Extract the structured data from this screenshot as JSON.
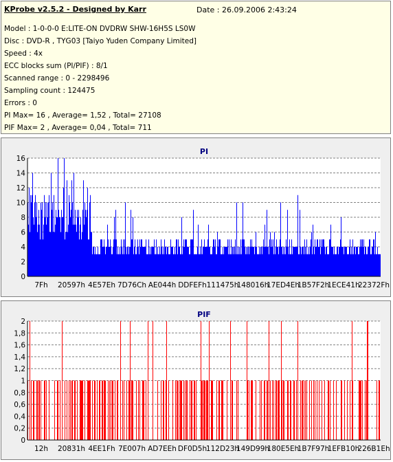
{
  "info": {
    "title": "KProbe v2.5.2 - Designed by Karr",
    "date": "Date : 26.09.2006 2:43:24",
    "lines": [
      "Model : 1-0-0-0 E:LITE-ON DVDRW SHW-16H5S  LS0W",
      "Disc : DVD-R , TYG03 [Taiyo Yuden Company Limited]",
      "Speed : 4x",
      "ECC blocks sum (PI/PIF) : 8/1",
      "Scanned range : 0 - 2298496",
      "Sampling count : 124475",
      "Errors : 0",
      "PI Max= 16 , Average= 1,52 , Total= 27108",
      "PIF Max= 2 , Average= 0,04 , Total= 711"
    ]
  },
  "chart_data": [
    {
      "type": "bar",
      "title": "PI",
      "color": "#0000ff",
      "ylim": [
        0,
        16
      ],
      "yticks": [
        "0",
        "2",
        "4",
        "6",
        "8",
        "10",
        "12",
        "14",
        "16"
      ],
      "xticks": [
        "7Fh",
        "20597h",
        "4E57Eh",
        "7D76Ch",
        "AE044h",
        "DDFEFh",
        "111475h",
        "148016h",
        "17ED4Eh",
        "1B57F2h",
        "1ECE41h",
        "22372Fh"
      ],
      "grid": true,
      "summary": {
        "max": 16,
        "average": 1.52
      }
    },
    {
      "type": "bar",
      "title": "PIF",
      "color": "#ff0000",
      "ylim": [
        0,
        2
      ],
      "yticks": [
        "0",
        "0,2",
        "0,4",
        "0,6",
        "0,8",
        "1",
        "1,2",
        "1,4",
        "1,6",
        "1,8",
        "2"
      ],
      "xticks": [
        "12h",
        "20831h",
        "4EE1Fh",
        "7E007h",
        "AD7EEh",
        "DF0D5h",
        "112D23h",
        "149D99h",
        "180E5Eh",
        "1B7F97h",
        "1EFB10h",
        "226B1Eh"
      ],
      "grid": true,
      "summary": {
        "max": 2,
        "average": 0.04
      }
    }
  ]
}
